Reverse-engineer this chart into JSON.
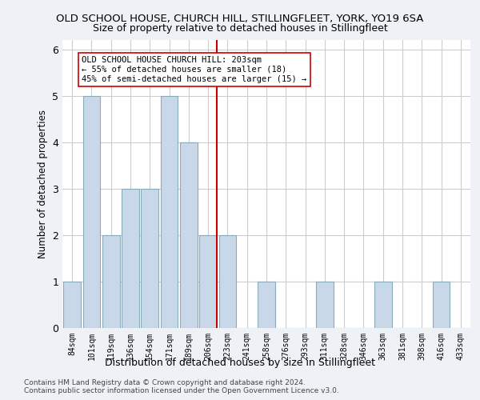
{
  "title": "OLD SCHOOL HOUSE, CHURCH HILL, STILLINGFLEET, YORK, YO19 6SA",
  "subtitle": "Size of property relative to detached houses in Stillingfleet",
  "xlabel": "Distribution of detached houses by size in Stillingfleet",
  "ylabel": "Number of detached properties",
  "categories": [
    "84sqm",
    "101sqm",
    "119sqm",
    "136sqm",
    "154sqm",
    "171sqm",
    "189sqm",
    "206sqm",
    "223sqm",
    "241sqm",
    "258sqm",
    "276sqm",
    "293sqm",
    "311sqm",
    "328sqm",
    "346sqm",
    "363sqm",
    "381sqm",
    "398sqm",
    "416sqm",
    "433sqm"
  ],
  "values": [
    1,
    5,
    2,
    3,
    3,
    5,
    4,
    2,
    2,
    0,
    1,
    0,
    0,
    1,
    0,
    0,
    1,
    0,
    0,
    1,
    0
  ],
  "bar_color": "#c8d8e8",
  "bar_edge_color": "#8aaabb",
  "highlight_index": 7,
  "highlight_color": "#cc0000",
  "annotation_text": "OLD SCHOOL HOUSE CHURCH HILL: 203sqm\n← 55% of detached houses are smaller (18)\n45% of semi-detached houses are larger (15) →",
  "annotation_box_color": "white",
  "annotation_box_edge": "#cc0000",
  "ylim": [
    0,
    6.2
  ],
  "yticks": [
    0,
    1,
    2,
    3,
    4,
    5,
    6
  ],
  "footer1": "Contains HM Land Registry data © Crown copyright and database right 2024.",
  "footer2": "Contains public sector information licensed under the Open Government Licence v3.0.",
  "bg_color": "#eef2f7",
  "plot_bg_color": "#ffffff"
}
